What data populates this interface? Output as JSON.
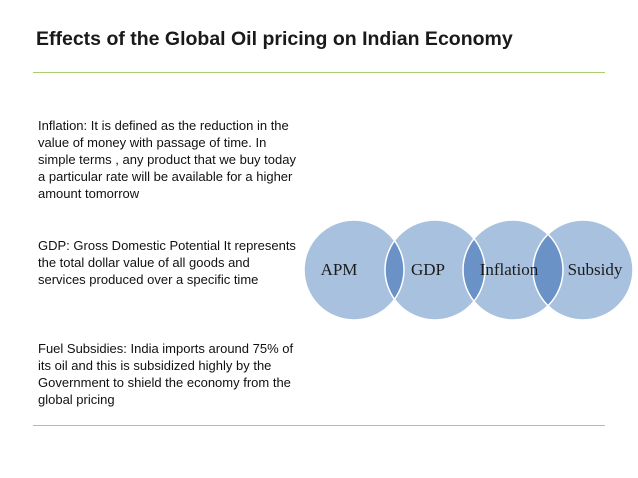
{
  "slide": {
    "title": "Effects of the Global Oil pricing on Indian Economy",
    "paragraphs": [
      "Inflation: It is defined as the reduction in the value of money with passage of time. In simple terms , any product that we buy today a particular rate will be available for a higher amount tomorrow",
      "GDP: Gross Domestic Potential It represents the total dollar value of all goods and services produced over a specific time",
      "Fuel Subsidies: India imports around 75% of its oil and this is subsidized highly by the Government to shield the economy from the global pricing"
    ]
  },
  "diagram": {
    "circles": [
      "APM",
      "GDP",
      "Inflation",
      "Subsidy"
    ],
    "colors": {
      "circle_fill": "#a8c1de",
      "circle_stroke": "#ffffff",
      "overlap_fill": "#6a92c6",
      "rule": "#a8cf6d"
    }
  }
}
